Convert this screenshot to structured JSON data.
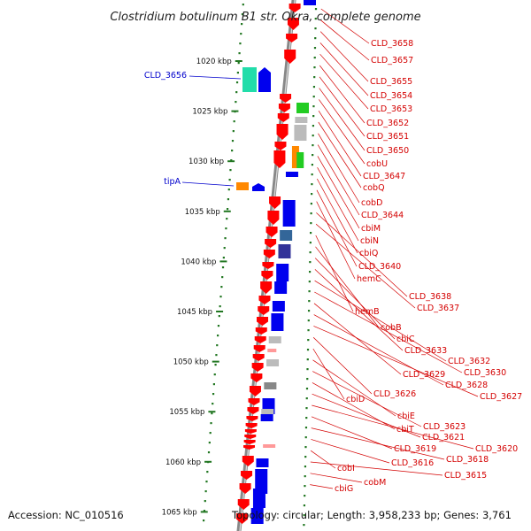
{
  "title": "Clostridium botulinum B1 str. Okra, complete genome",
  "footer": {
    "accession": "Accession: NC_010516",
    "topology": "Topology: circular; Length: 3,958,233 bp; Genes: 3,761"
  },
  "kbp_labels": [
    "1020 kbp",
    "1025 kbp",
    "1030 kbp",
    "1035 kbp",
    "1040 kbp",
    "1045 kbp",
    "1050 kbp",
    "1055 kbp",
    "1060 kbp",
    "1065 kbp"
  ],
  "left_labels": [
    "CLD_3656",
    "tipA"
  ],
  "right_labels": [
    "CLD_3658",
    "CLD_3657",
    "CLD_3655",
    "CLD_3654",
    "CLD_3653",
    "CLD_3652",
    "CLD_3651",
    "CLD_3650",
    "cobU",
    "CLD_3647",
    "cobQ",
    "cobD",
    "CLD_3644",
    "cbiM",
    "cbiN",
    "cbiQ",
    "CLD_3640",
    "hemC",
    "CLD_3638",
    "CLD_3637",
    "hemB",
    "cobB",
    "cbiC",
    "CLD_3633",
    "CLD_3632",
    "CLD_3630",
    "CLD_3629",
    "CLD_3628",
    "CLD_3627",
    "CLD_3626",
    "cbiD",
    "cbiE",
    "CLD_3623",
    "cbiT",
    "CLD_3621",
    "CLD_3620",
    "CLD_3619",
    "CLD_3618",
    "CLD_3616",
    "cobI",
    "CLD_3615",
    "cobM",
    "cbiG"
  ],
  "colors": {
    "red": "#ff0000",
    "blue": "#0000ee",
    "green": "#22cc22",
    "teal": "#22ddaa",
    "orange": "#ff8800",
    "gray": "#bbbbbb",
    "darkblue": "#333399",
    "steel": "#336699",
    "label_red": "#d40000",
    "label_blue": "#0000cc",
    "tick_green": "#227722"
  }
}
